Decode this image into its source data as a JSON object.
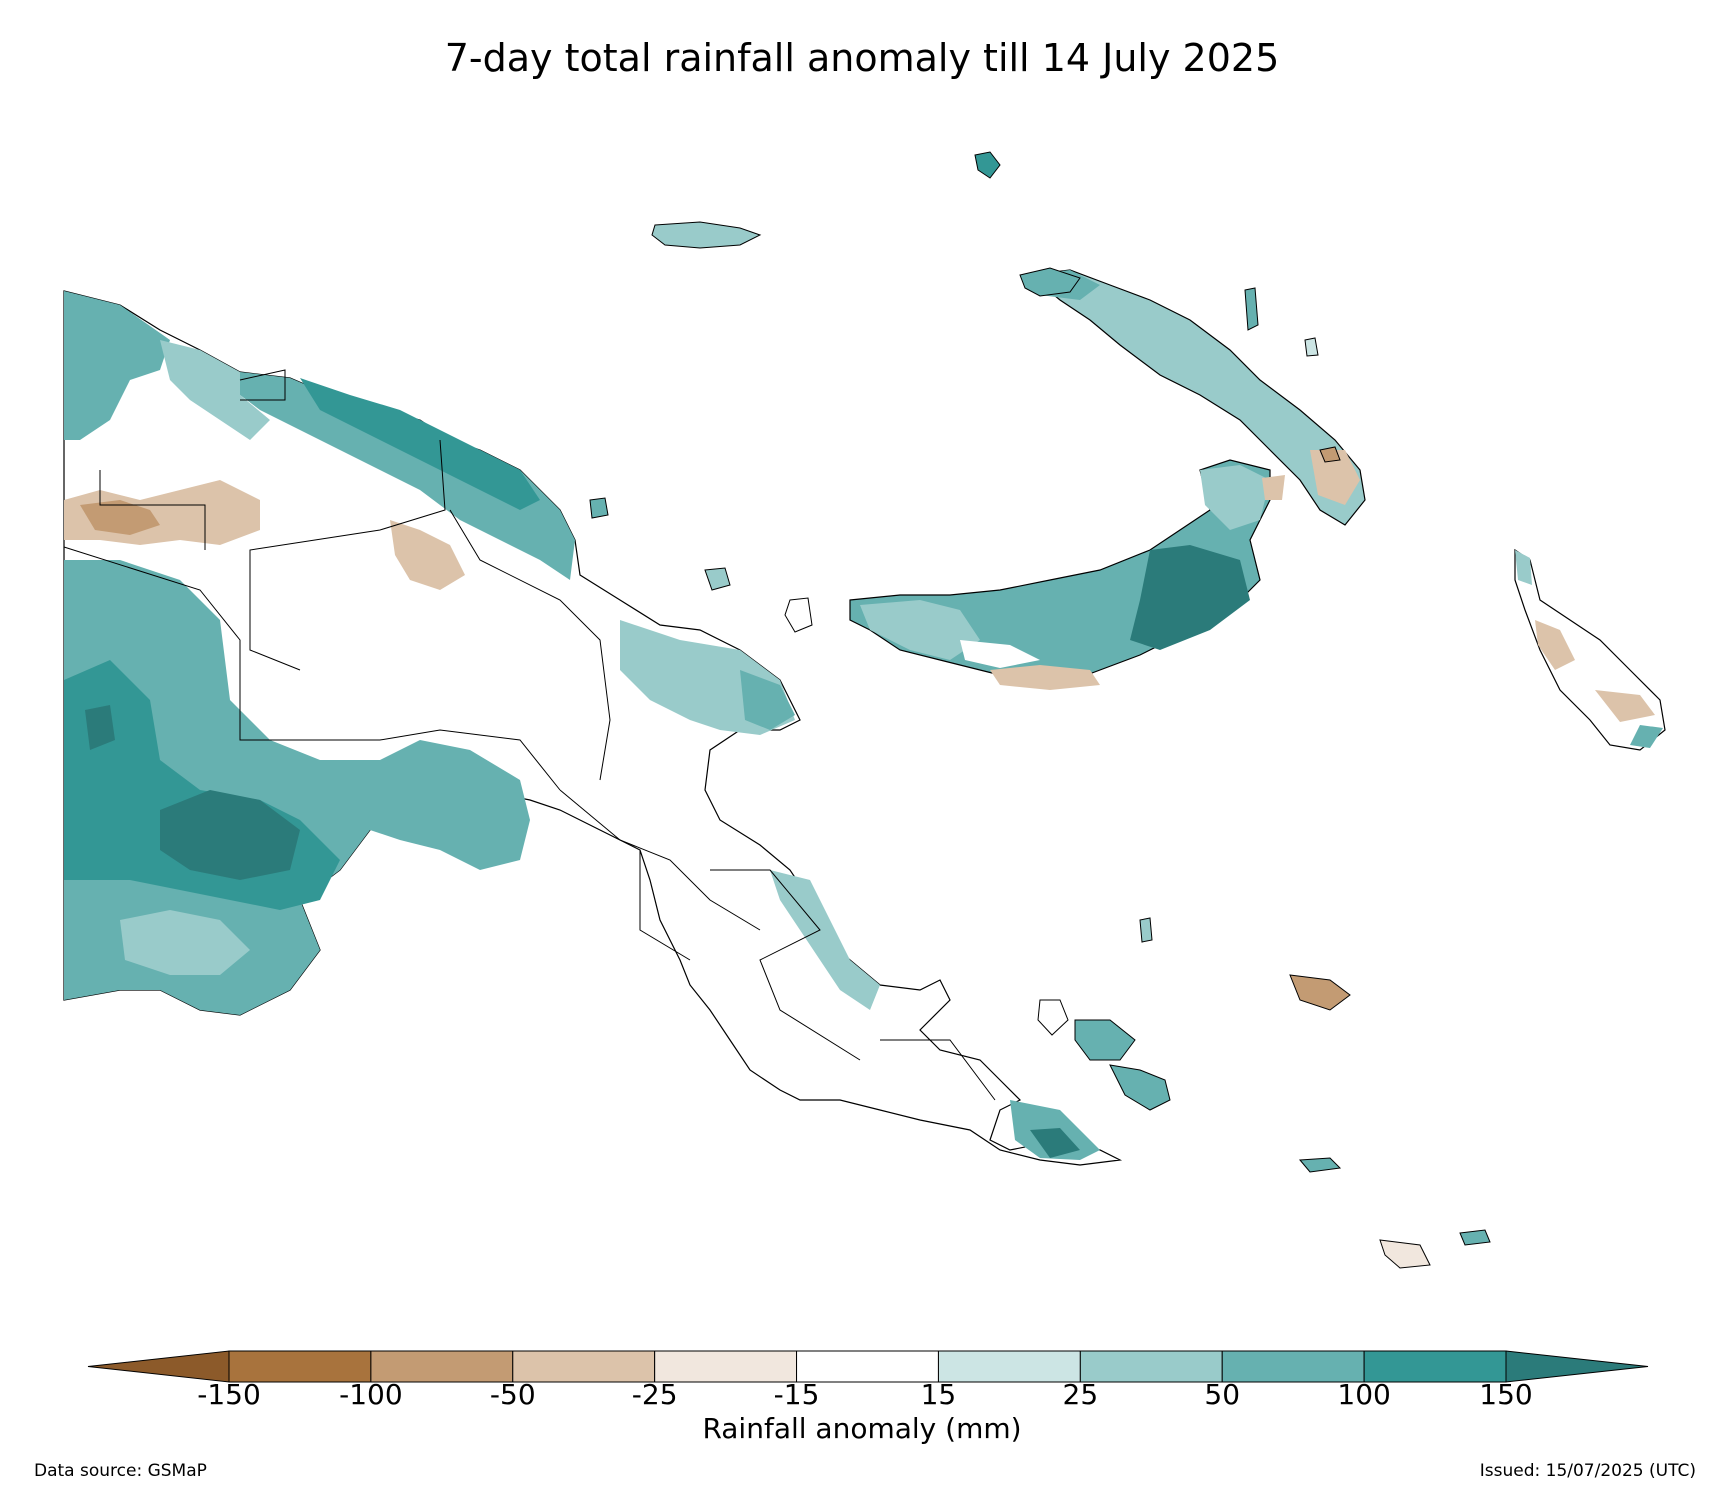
{
  "title": "7-day total rainfall anomaly till 14 July 2025",
  "colorbar": {
    "label": "Rainfall anomaly (mm)",
    "ticks": [
      "-150",
      "-100",
      "-50",
      "-25",
      "-15",
      "15",
      "25",
      "50",
      "100",
      "150"
    ],
    "bins": [
      {
        "range": "< -150",
        "color": "#8c5a2a"
      },
      {
        "range": "-150 to -100",
        "color": "#a8733d"
      },
      {
        "range": "-100 to -50",
        "color": "#c39b73"
      },
      {
        "range": "-50 to -25",
        "color": "#dcc3aa"
      },
      {
        "range": "-25 to -15",
        "color": "#f1e7de"
      },
      {
        "range": "-15 to 15",
        "color": "#ffffff"
      },
      {
        "range": "15 to 25",
        "color": "#cce5e4"
      },
      {
        "range": "25 to 50",
        "color": "#99cbca"
      },
      {
        "range": "50 to 100",
        "color": "#66b1b0"
      },
      {
        "range": "100 to 150",
        "color": "#339795"
      },
      {
        "range": "> 150",
        "color": "#2b7b7a"
      }
    ]
  },
  "footer": {
    "source": "Data source: GSMaP",
    "issued": "Issued: 15/07/2025 (UTC)"
  }
}
